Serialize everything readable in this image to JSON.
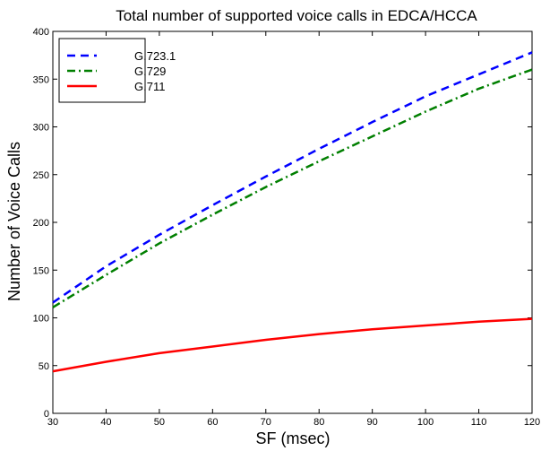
{
  "chart_data": {
    "type": "line",
    "title": "Total number of supported voice calls in EDCA/HCCA",
    "xlabel": "SF (msec)",
    "ylabel": "Number of Voice Calls",
    "xlim": [
      30,
      120
    ],
    "ylim": [
      0,
      400
    ],
    "xticks": [
      "30",
      "40",
      "50",
      "60",
      "70",
      "80",
      "90",
      "100",
      "110",
      "120"
    ],
    "yticks": [
      "0",
      "50",
      "100",
      "150",
      "200",
      "250",
      "300",
      "350",
      "400"
    ],
    "grid": false,
    "legend_position": "top-left",
    "x": [
      30,
      40,
      50,
      60,
      70,
      80,
      90,
      100,
      110,
      120
    ],
    "series": [
      {
        "name": "G.723.1",
        "color": "#0000ff",
        "style": "dashed",
        "values": [
          116,
          154,
          187,
          218,
          248,
          277,
          305,
          332,
          355,
          378
        ]
      },
      {
        "name": "G.729",
        "color": "#007f00",
        "style": "dashdot",
        "values": [
          111,
          145,
          178,
          208,
          237,
          264,
          290,
          316,
          340,
          360
        ]
      },
      {
        "name": "G.711",
        "color": "#ff0000",
        "style": "solid",
        "values": [
          44,
          54,
          63,
          70,
          77,
          83,
          88,
          92,
          96,
          99
        ]
      }
    ]
  }
}
